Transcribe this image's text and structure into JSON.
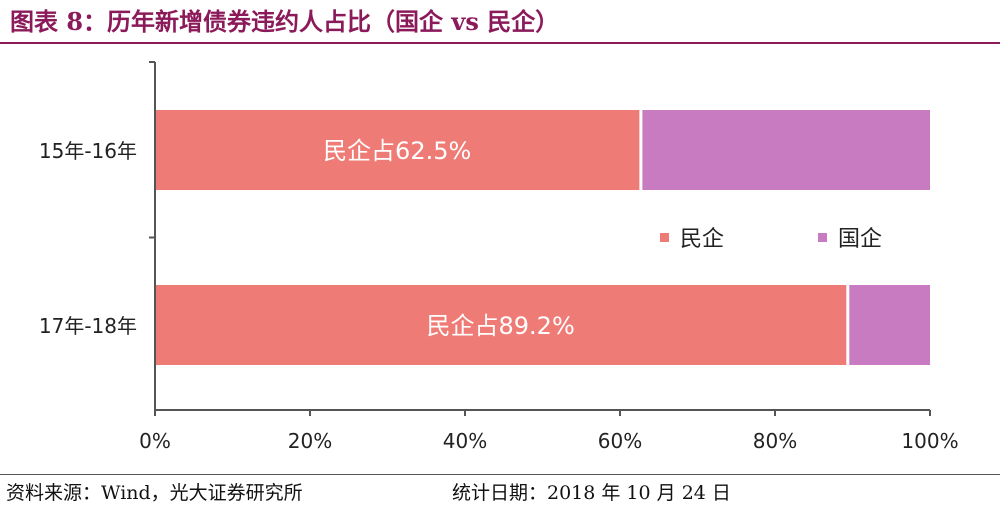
{
  "title": "图表 8：历年新增债券违约人占比（国企 vs 民企）",
  "footer": {
    "source": "资料来源：Wind，光大证券研究所",
    "date": "统计日期：2018 年 10 月 24 日"
  },
  "colors": {
    "private": "#ef7b76",
    "state": "#c97bc1",
    "title": "#8b1a5a",
    "axis": "#555555"
  },
  "chart_data": {
    "type": "bar",
    "orientation": "horizontal",
    "stacked": true,
    "title": "图表 8：历年新增债券违约人占比（国企 vs 民企）",
    "categories": [
      "15年-16年",
      "17年-18年"
    ],
    "series": [
      {
        "name": "民企",
        "color": "#ef7b76",
        "values": [
          62.5,
          89.2
        ],
        "labels": [
          "民企占62.5%",
          "民企占89.2%"
        ]
      },
      {
        "name": "国企",
        "color": "#c97bc1",
        "values": [
          37.5,
          10.8
        ]
      }
    ],
    "xlim": [
      0,
      100
    ],
    "xticks": [
      "0%",
      "20%",
      "40%",
      "60%",
      "80%",
      "100%"
    ],
    "xlabel": "",
    "ylabel": "",
    "grid": false,
    "legend": {
      "position": "center-right",
      "entries": [
        "民企",
        "国企"
      ]
    }
  }
}
